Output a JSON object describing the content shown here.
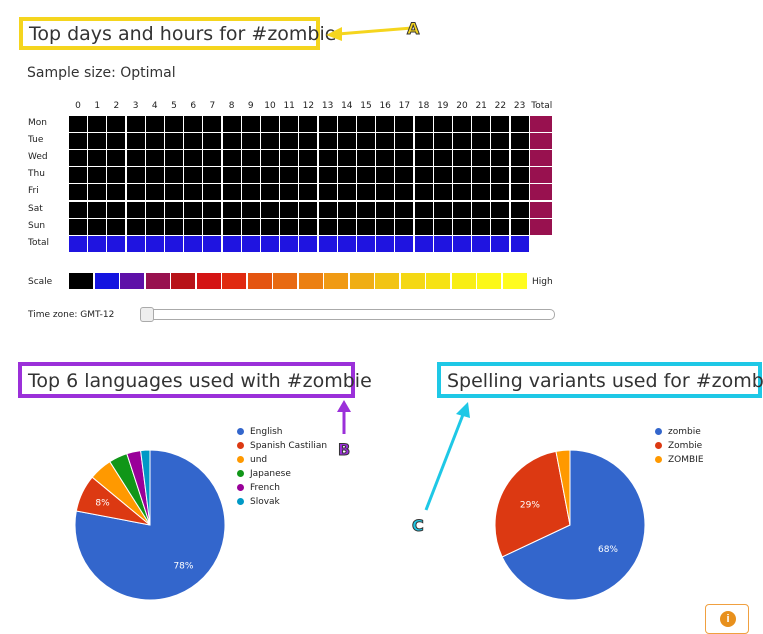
{
  "heatmap": {
    "title": "Top days and hours for #zombie",
    "sample_size": "Sample size: Optimal",
    "hours": [
      "0",
      "1",
      "2",
      "3",
      "4",
      "5",
      "6",
      "7",
      "8",
      "9",
      "10",
      "11",
      "12",
      "13",
      "14",
      "15",
      "16",
      "17",
      "18",
      "19",
      "20",
      "21",
      "22",
      "23"
    ],
    "total_label": "Total",
    "days": [
      "Mon",
      "Tue",
      "Wed",
      "Thu",
      "Fri",
      "Sat",
      "Sun"
    ],
    "row_total_label": "Total",
    "scale_label": "Scale",
    "scale_high": "High",
    "timezone_label": "Time zone: GMT-12",
    "colors": {
      "cell": "#000000",
      "day_total": "#98114f",
      "hour_total": "#1f14e0",
      "scale": [
        "#000000",
        "#1414e0",
        "#5e10a8",
        "#98114f",
        "#b81218",
        "#d41414",
        "#e02a10",
        "#e45410",
        "#e86a12",
        "#ec8012",
        "#f09a14",
        "#f0ae14",
        "#f2c414",
        "#f4d814",
        "#f6e214",
        "#f8ee14",
        "#fcf818",
        "#fffc20"
      ]
    }
  },
  "languages": {
    "title": "Top 6 languages used with #zombie",
    "chart_data": {
      "type": "pie",
      "slices": [
        {
          "label": "English",
          "value": 78,
          "color": "#3366cc"
        },
        {
          "label": "Spanish Castilian",
          "value": 8,
          "color": "#dc3912"
        },
        {
          "label": "und",
          "value": 5,
          "color": "#ff9900"
        },
        {
          "label": "Japanese",
          "value": 4,
          "color": "#109618"
        },
        {
          "label": "French",
          "value": 3,
          "color": "#990099"
        },
        {
          "label": "Slovak",
          "value": 2,
          "color": "#0099c6"
        }
      ],
      "data_labels": [
        "78%",
        "8%"
      ]
    }
  },
  "spelling": {
    "title": "Spelling variants used for #zombie",
    "chart_data": {
      "type": "pie",
      "slices": [
        {
          "label": "zombie",
          "value": 68,
          "color": "#3366cc"
        },
        {
          "label": "Zombie",
          "value": 29,
          "color": "#dc3912"
        },
        {
          "label": "ZOMBIE",
          "value": 3,
          "color": "#ff9900"
        }
      ],
      "data_labels": [
        "68%",
        "29%"
      ]
    }
  },
  "callouts": {
    "a": "A",
    "b": "B",
    "c": "C"
  },
  "box_colors": {
    "a": "#f5d51e",
    "b": "#9b30d9",
    "c": "#1ec8e6"
  },
  "info_icon": "info-icon"
}
